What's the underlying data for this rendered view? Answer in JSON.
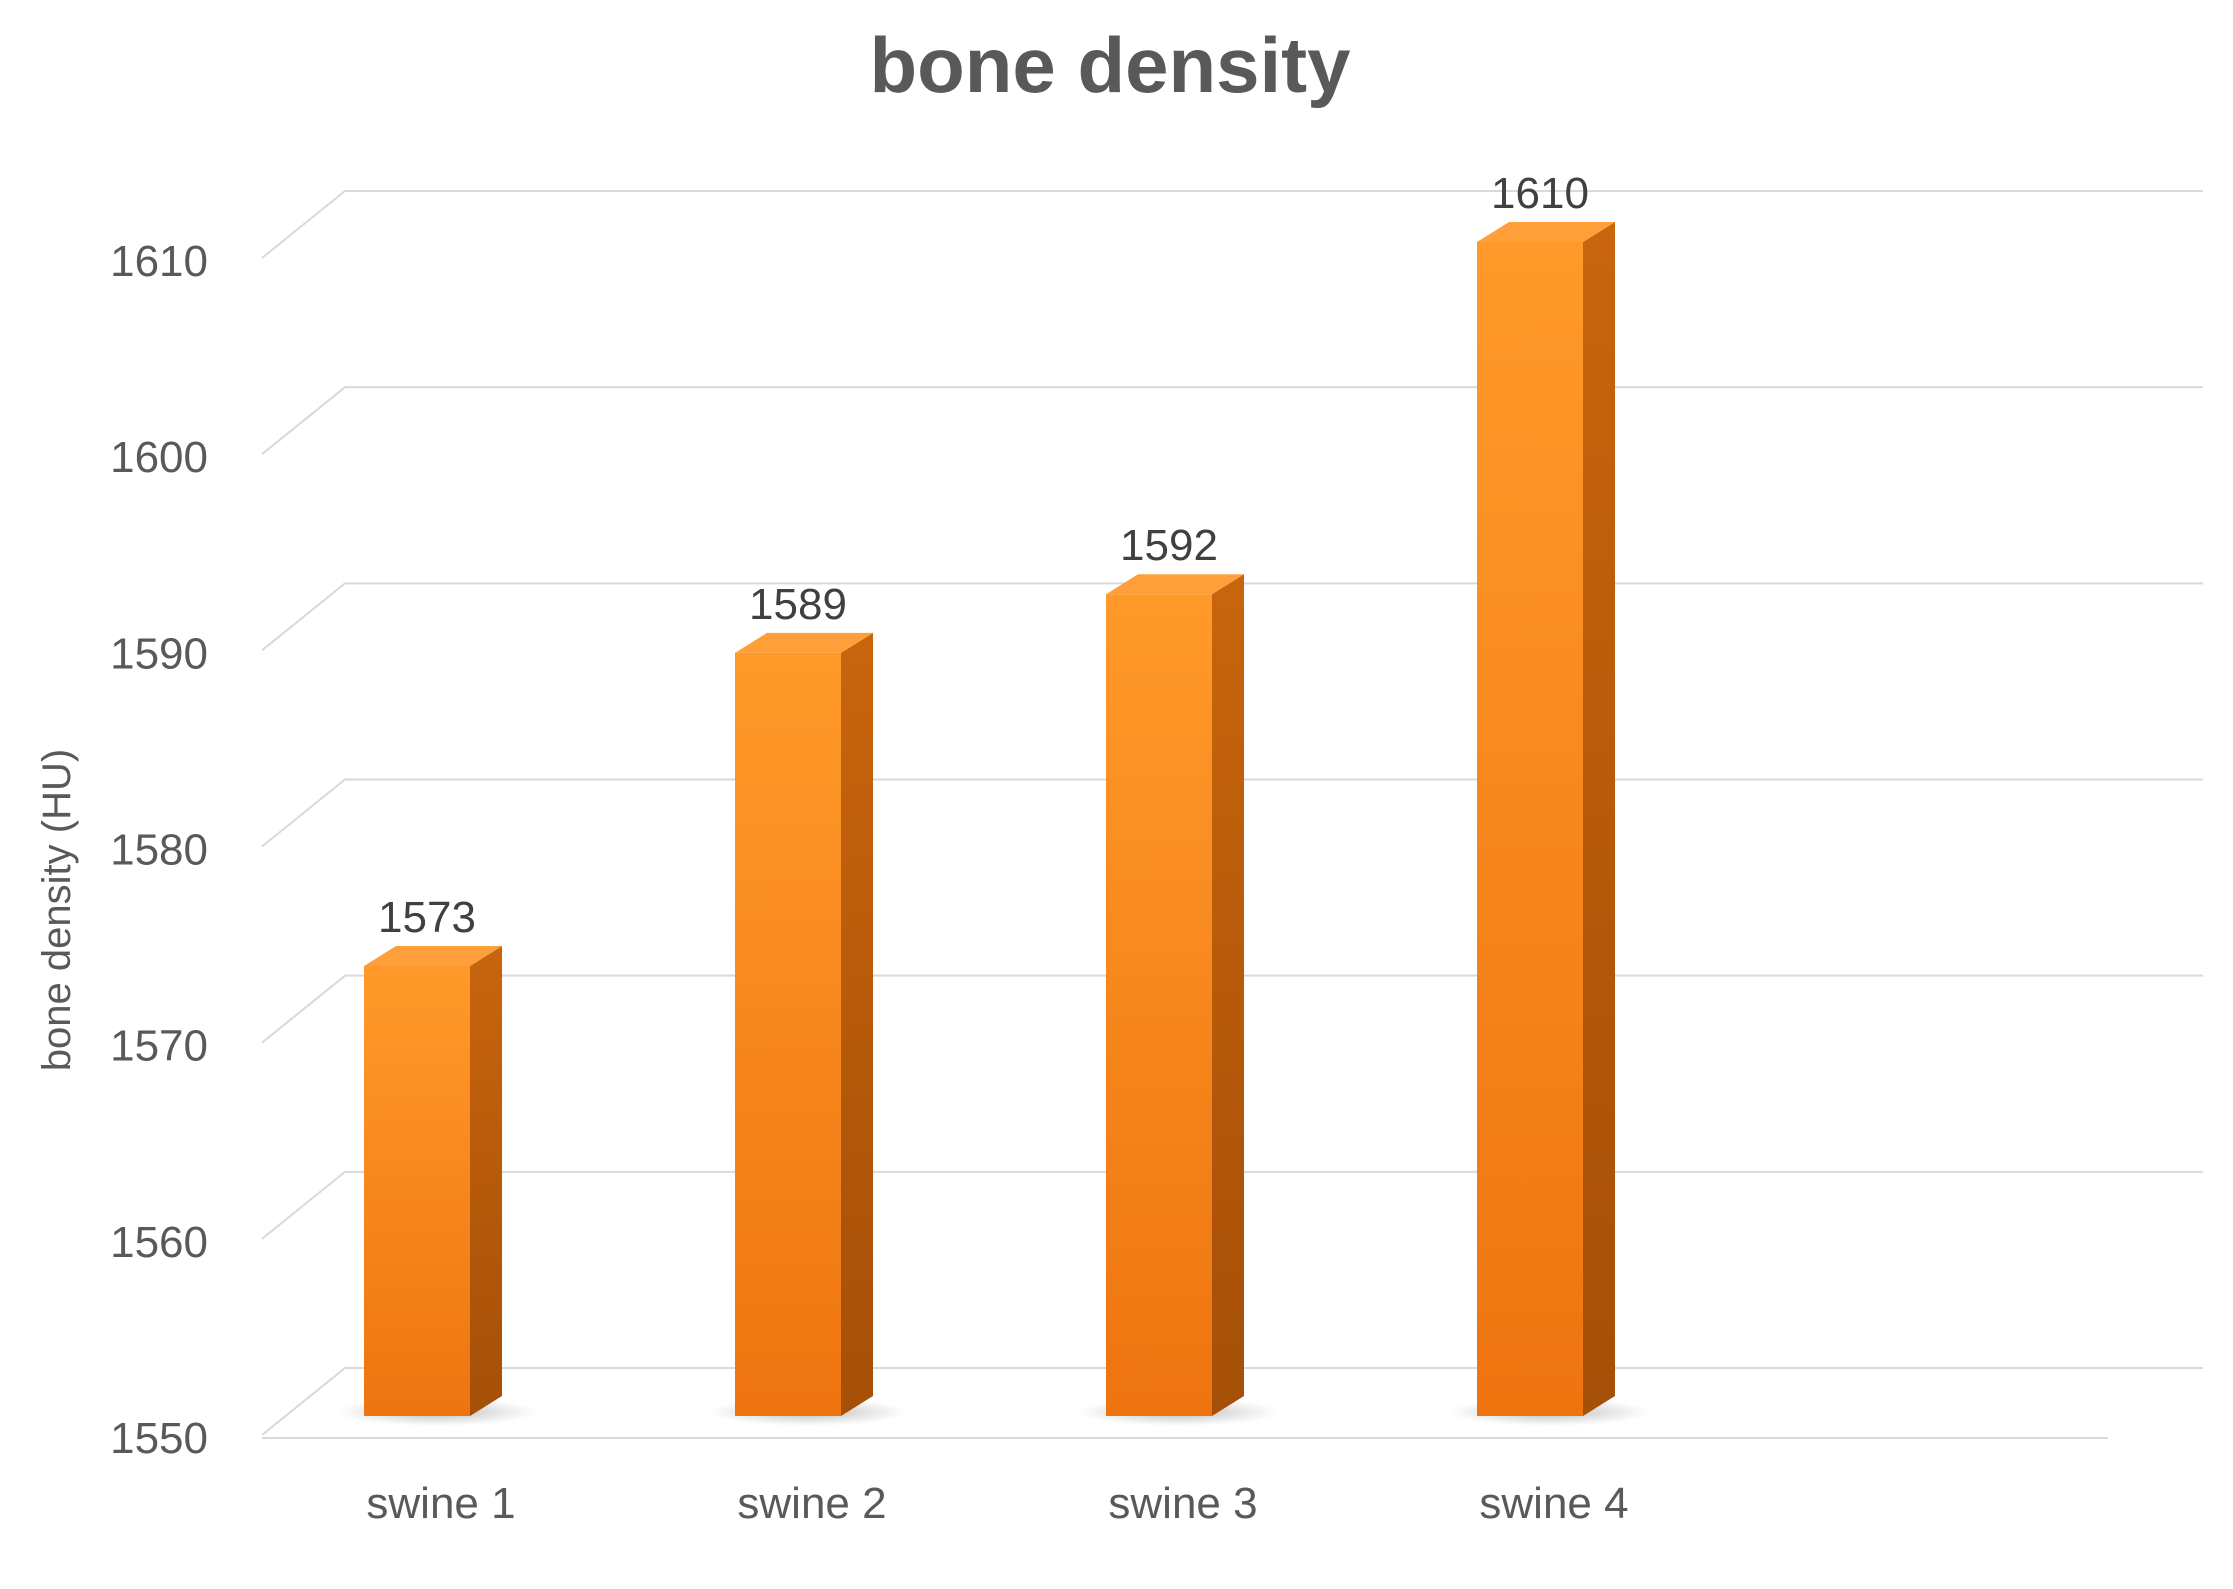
{
  "chart_data": {
    "type": "bar",
    "title": "bone density",
    "xlabel": "",
    "ylabel": "bone density (HU)",
    "categories": [
      "swine 1",
      "swine 2",
      "swine 3",
      "swine 4"
    ],
    "values": [
      1573,
      1589,
      1592,
      1610
    ],
    "data_labels": [
      "1573",
      "1589",
      "1592",
      "1610"
    ],
    "yticks": [
      1550,
      1560,
      1570,
      1580,
      1590,
      1600,
      1610
    ],
    "ytick_labels": [
      "1550",
      "1560",
      "1570",
      "1580",
      "1590",
      "1600",
      "1610"
    ],
    "ylim": [
      1550,
      1610
    ],
    "grid": true,
    "legend": "none",
    "style": "3d-column",
    "colors": {
      "bar_front_top": "#ff9a2a",
      "bar_front_bottom": "#ee7410",
      "bar_side": "#b85a0a",
      "bar_top": "#ff9f3a"
    }
  }
}
